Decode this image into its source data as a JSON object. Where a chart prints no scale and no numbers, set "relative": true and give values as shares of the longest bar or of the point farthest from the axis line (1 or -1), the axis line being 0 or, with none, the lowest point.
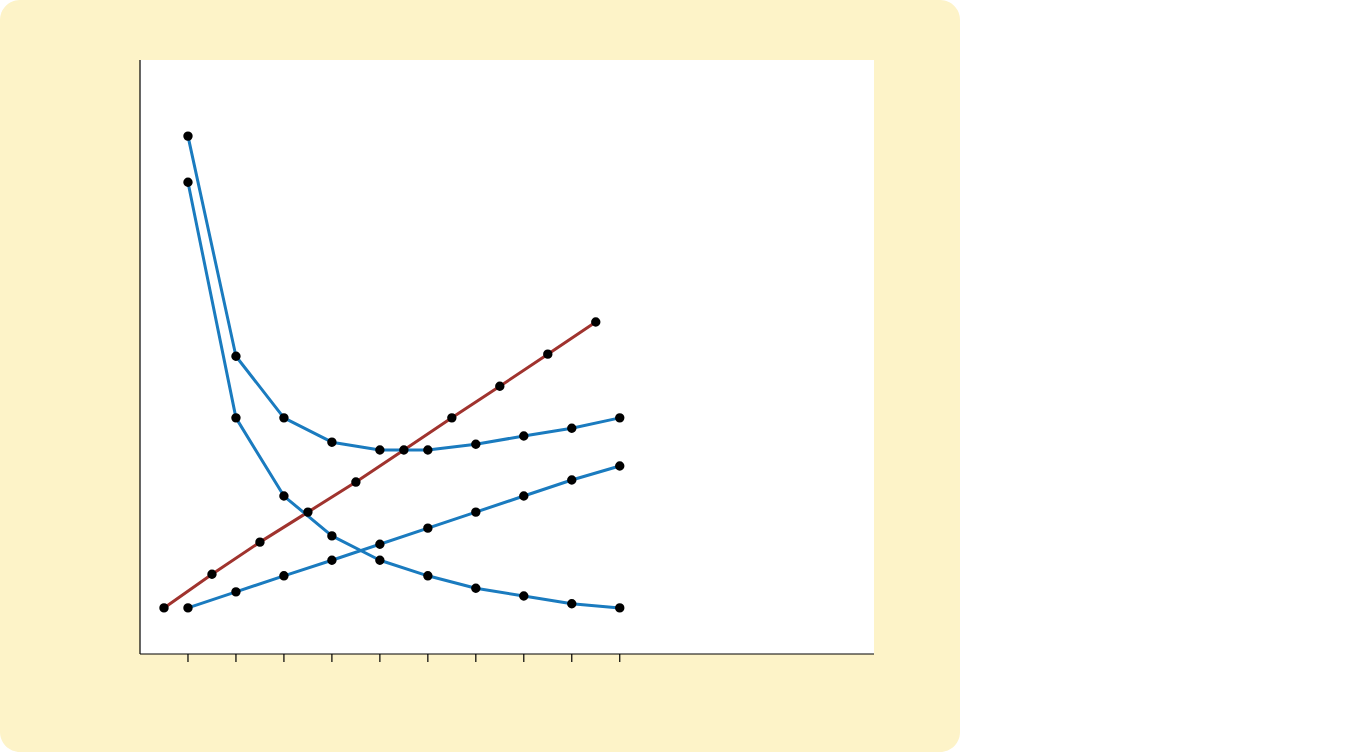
{
  "chart_data": {
    "type": "line",
    "relative": true,
    "marker": "circle",
    "line_style": "solid",
    "categories": [
      null,
      null,
      null,
      null,
      null,
      null,
      null,
      null,
      null,
      null,
      null,
      null,
      null,
      null,
      null,
      null,
      null,
      null,
      null,
      null
    ],
    "series": [
      {
        "color": "#a0332e",
        "values": [
          0.089,
          null,
          0.154,
          null,
          0.216,
          null,
          0.274,
          null,
          0.332,
          null,
          0.394,
          null,
          0.456,
          null,
          0.517,
          null,
          0.579,
          null,
          0.641,
          null
        ]
      },
      {
        "color": "#1a7bbf",
        "values": [
          null,
          1,
          null,
          0.575,
          null,
          0.456,
          null,
          0.409,
          null,
          0.394,
          null,
          0.394,
          null,
          0.405,
          null,
          0.421,
          null,
          0.436,
          null,
          0.456
        ]
      },
      {
        "color": "#1a7bbf",
        "values": [
          null,
          0.911,
          null,
          0.456,
          null,
          0.305,
          null,
          0.228,
          null,
          0.181,
          null,
          0.151,
          null,
          0.127,
          null,
          0.112,
          null,
          0.097,
          null,
          0.089
        ]
      },
      {
        "color": "#1a7bbf",
        "values": [
          null,
          0.089,
          null,
          0.12,
          null,
          0.151,
          null,
          0.181,
          null,
          0.212,
          null,
          0.243,
          null,
          0.274,
          null,
          0.305,
          null,
          0.336,
          null,
          0.363
        ]
      }
    ]
  }
}
